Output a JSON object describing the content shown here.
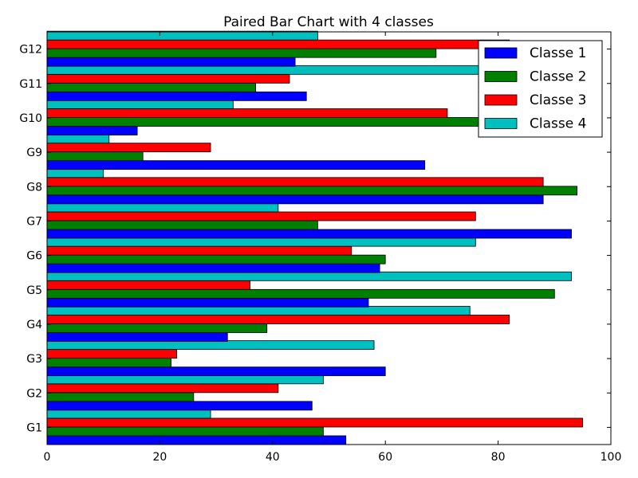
{
  "chart_data": {
    "type": "bar",
    "orientation": "horizontal",
    "title": "Paired Bar Chart with 4 classes",
    "xlabel": "",
    "ylabel": "",
    "xlim": [
      0,
      100
    ],
    "x_ticks": [
      0,
      20,
      40,
      60,
      80,
      100
    ],
    "categories": [
      "G1",
      "G2",
      "G3",
      "G4",
      "G5",
      "G6",
      "G7",
      "G8",
      "G9",
      "G10",
      "G11",
      "G12"
    ],
    "series": [
      {
        "name": "Classe 1",
        "color": "#0000ff",
        "values": [
          53,
          47,
          60,
          32,
          57,
          59,
          93,
          88,
          67,
          16,
          46,
          44
        ]
      },
      {
        "name": "Classe 2",
        "color": "#008000",
        "values": [
          49,
          26,
          22,
          39,
          90,
          60,
          48,
          94,
          17,
          77,
          37,
          69
        ]
      },
      {
        "name": "Classe 3",
        "color": "#ff0000",
        "values": [
          95,
          41,
          23,
          82,
          36,
          54,
          76,
          88,
          29,
          71,
          43,
          82
        ]
      },
      {
        "name": "Classe 4",
        "color": "#00bfbf",
        "values": [
          29,
          49,
          58,
          75,
          93,
          76,
          41,
          10,
          11,
          33,
          88,
          48
        ]
      }
    ],
    "legend_position": "top-right",
    "grid": false
  }
}
